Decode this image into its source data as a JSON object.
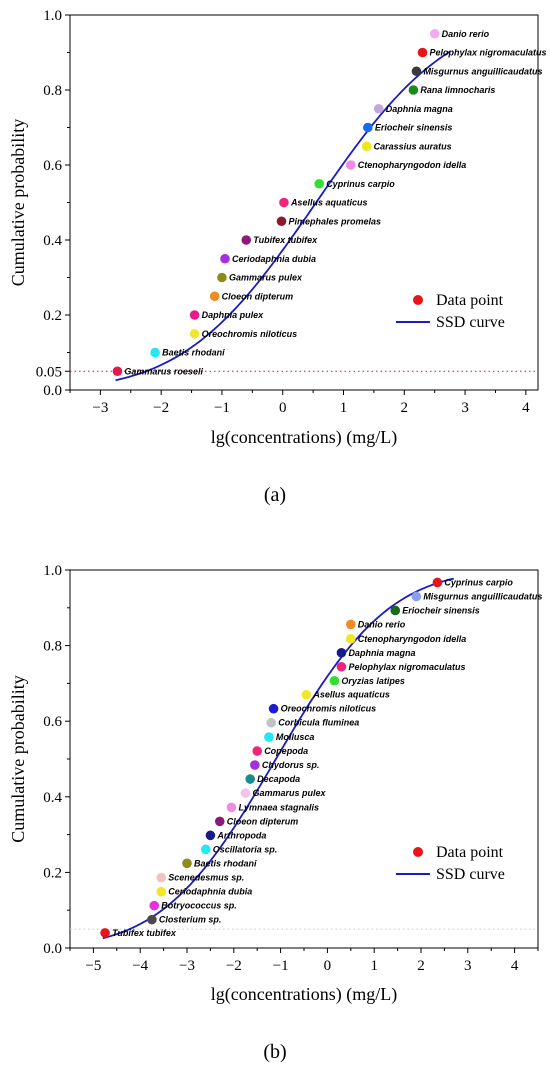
{
  "chart_data": [
    {
      "type": "scatter",
      "panel_label": "(a)",
      "xlabel": "lg(concentrations) (mg/L)",
      "ylabel": "Cumulative probability",
      "xlim": [
        -3.5,
        4.2
      ],
      "ylim": [
        0.0,
        1.0
      ],
      "xticks": [
        -3,
        -2,
        -1,
        0,
        1,
        2,
        3,
        4
      ],
      "yticks": [
        0.0,
        0.05,
        0.2,
        0.4,
        0.6,
        0.8,
        1.0
      ],
      "ytick_labels": [
        "0.0",
        "0.05",
        "0.2",
        "0.4",
        "0.6",
        "0.8",
        "1.0"
      ],
      "hazard_line_y": 0.05,
      "legend": {
        "position": "right",
        "point_label": "Data point",
        "curve_label": "SSD curve"
      },
      "ssd_curve": {
        "mu": 0.55,
        "sigma": 1.7,
        "x_start": -2.75,
        "x_end": 2.75
      },
      "points": [
        {
          "x": -2.72,
          "y": 0.05,
          "label": "Gammarus roeseli",
          "color": "#e8174a"
        },
        {
          "x": -2.1,
          "y": 0.1,
          "label": "Baetis rhodani",
          "color": "#22e8f0"
        },
        {
          "x": -1.45,
          "y": 0.15,
          "label": "Oreochromis niloticus",
          "color": "#f2e62a"
        },
        {
          "x": -1.45,
          "y": 0.2,
          "label": "Daphnia pulex",
          "color": "#e81a8c"
        },
        {
          "x": -1.12,
          "y": 0.25,
          "label": "Cloeon dipterum",
          "color": "#f08a24"
        },
        {
          "x": -1.0,
          "y": 0.3,
          "label": "Gammarus pulex",
          "color": "#8c8c1a"
        },
        {
          "x": -0.95,
          "y": 0.35,
          "label": "Ceriodaphnia dubia",
          "color": "#a330e0"
        },
        {
          "x": -0.6,
          "y": 0.4,
          "label": "Tubifex tubifex",
          "color": "#8c1a7a"
        },
        {
          "x": -0.02,
          "y": 0.45,
          "label": "Pimephales promelas",
          "color": "#8c1a2a"
        },
        {
          "x": 0.02,
          "y": 0.5,
          "label": "Asellus aquaticus",
          "color": "#f0247a"
        },
        {
          "x": 0.6,
          "y": 0.55,
          "label": "Cyprinus carpio",
          "color": "#30e030"
        },
        {
          "x": 1.12,
          "y": 0.6,
          "label": "Ctenopharyngodon idella",
          "color": "#f08ae6"
        },
        {
          "x": 1.38,
          "y": 0.65,
          "label": "Carassius auratus",
          "color": "#ece81a"
        },
        {
          "x": 1.4,
          "y": 0.7,
          "label": "Eriocheir sinensis",
          "color": "#1a6af0"
        },
        {
          "x": 1.58,
          "y": 0.75,
          "label": "Daphnia magna",
          "color": "#c2a8d8"
        },
        {
          "x": 2.15,
          "y": 0.8,
          "label": "Rana limnocharis",
          "color": "#1a8c1a"
        },
        {
          "x": 2.2,
          "y": 0.85,
          "label": "Misgurnus anguillicaudatus",
          "color": "#3a3a3a"
        },
        {
          "x": 2.3,
          "y": 0.9,
          "label": "Pelophylax nigromaculatus",
          "color": "#e8141a"
        },
        {
          "x": 2.5,
          "y": 0.95,
          "label": "Danio rerio",
          "color": "#f2aaf0"
        }
      ]
    },
    {
      "type": "scatter",
      "panel_label": "(b)",
      "xlabel": "lg(concentrations) (mg/L)",
      "ylabel": "Cumulative probability",
      "xlim": [
        -5.5,
        4.5
      ],
      "ylim": [
        0.0,
        1.0
      ],
      "xticks": [
        -5,
        -4,
        -3,
        -2,
        -1,
        0,
        1,
        2,
        3,
        4
      ],
      "yticks": [
        0.0,
        0.2,
        0.4,
        0.6,
        0.8,
        1.0
      ],
      "ytick_labels": [
        "0.0",
        "0.2",
        "0.4",
        "0.6",
        "0.8",
        "1.0"
      ],
      "hazard_line_y": 0.05,
      "legend": {
        "position": "right",
        "point_label": "Data point",
        "curve_label": "SSD curve"
      },
      "ssd_curve": {
        "mu": -1.1,
        "sigma": 1.9,
        "x_start": -4.8,
        "x_end": 2.7
      },
      "points": [
        {
          "x": -4.75,
          "y": 0.04,
          "label": "Tubifex tubifex",
          "color": "#e8141a"
        },
        {
          "x": -3.75,
          "y": 0.075,
          "label": "Closterium sp.",
          "color": "#4a4a4a"
        },
        {
          "x": -3.7,
          "y": 0.112,
          "label": "Botryococcus sp.",
          "color": "#e830e0"
        },
        {
          "x": -3.55,
          "y": 0.149,
          "label": "Ceriodaphnia dubia",
          "color": "#f2e62a"
        },
        {
          "x": -3.55,
          "y": 0.186,
          "label": "Scenedesmus sp.",
          "color": "#f2c2c2"
        },
        {
          "x": -3.0,
          "y": 0.224,
          "label": "Baetis rhodani",
          "color": "#8c8c1a"
        },
        {
          "x": -2.6,
          "y": 0.261,
          "label": "Oscillatoria sp.",
          "color": "#22e8f0"
        },
        {
          "x": -2.5,
          "y": 0.298,
          "label": "Arthropoda",
          "color": "#1a1a8c"
        },
        {
          "x": -2.3,
          "y": 0.335,
          "label": "Cloeon dipterum",
          "color": "#8c1a7a"
        },
        {
          "x": -2.05,
          "y": 0.372,
          "label": "Lymnaea stagnalis",
          "color": "#f08ae6"
        },
        {
          "x": -1.75,
          "y": 0.41,
          "label": "Gammarus pulex",
          "color": "#f2c2f0"
        },
        {
          "x": -1.65,
          "y": 0.447,
          "label": "Decapoda",
          "color": "#1a8c8c"
        },
        {
          "x": -1.55,
          "y": 0.484,
          "label": "Chydorus sp.",
          "color": "#a330e0"
        },
        {
          "x": -1.5,
          "y": 0.521,
          "label": "Copepoda",
          "color": "#f0247a"
        },
        {
          "x": -1.25,
          "y": 0.558,
          "label": "Mollusca",
          "color": "#22e8f0"
        },
        {
          "x": -1.2,
          "y": 0.596,
          "label": "Corbicula fluminea",
          "color": "#c2c2c2"
        },
        {
          "x": -1.15,
          "y": 0.633,
          "label": "Oreochromis niloticus",
          "color": "#1a1ad8"
        },
        {
          "x": -0.45,
          "y": 0.67,
          "label": "Asellus aquaticus",
          "color": "#f2e62a"
        },
        {
          "x": 0.15,
          "y": 0.707,
          "label": "Oryzias latipes",
          "color": "#30e030"
        },
        {
          "x": 0.3,
          "y": 0.744,
          "label": "Pelophylax nigromaculatus",
          "color": "#f0247a"
        },
        {
          "x": 0.3,
          "y": 0.781,
          "label": "Daphnia magna",
          "color": "#1a1a8c"
        },
        {
          "x": 0.5,
          "y": 0.818,
          "label": "Ctenopharyngodon idella",
          "color": "#f2e62a"
        },
        {
          "x": 0.5,
          "y": 0.856,
          "label": "Danio rerio",
          "color": "#f08a24"
        },
        {
          "x": 1.45,
          "y": 0.893,
          "label": "Eriocheir sinensis",
          "color": "#1a6a1a"
        },
        {
          "x": 1.9,
          "y": 0.93,
          "label": "Misgurnus anguillicaudatus",
          "color": "#8aa0e8"
        },
        {
          "x": 2.35,
          "y": 0.967,
          "label": "Cyprinus carpio",
          "color": "#e8141a"
        }
      ]
    }
  ],
  "legend_marker_color": "#e8141a",
  "curve_color": "#1a1ac8",
  "hazard_line_color": "#e8141a",
  "hazard_line_color_b": "#c8c8c8"
}
